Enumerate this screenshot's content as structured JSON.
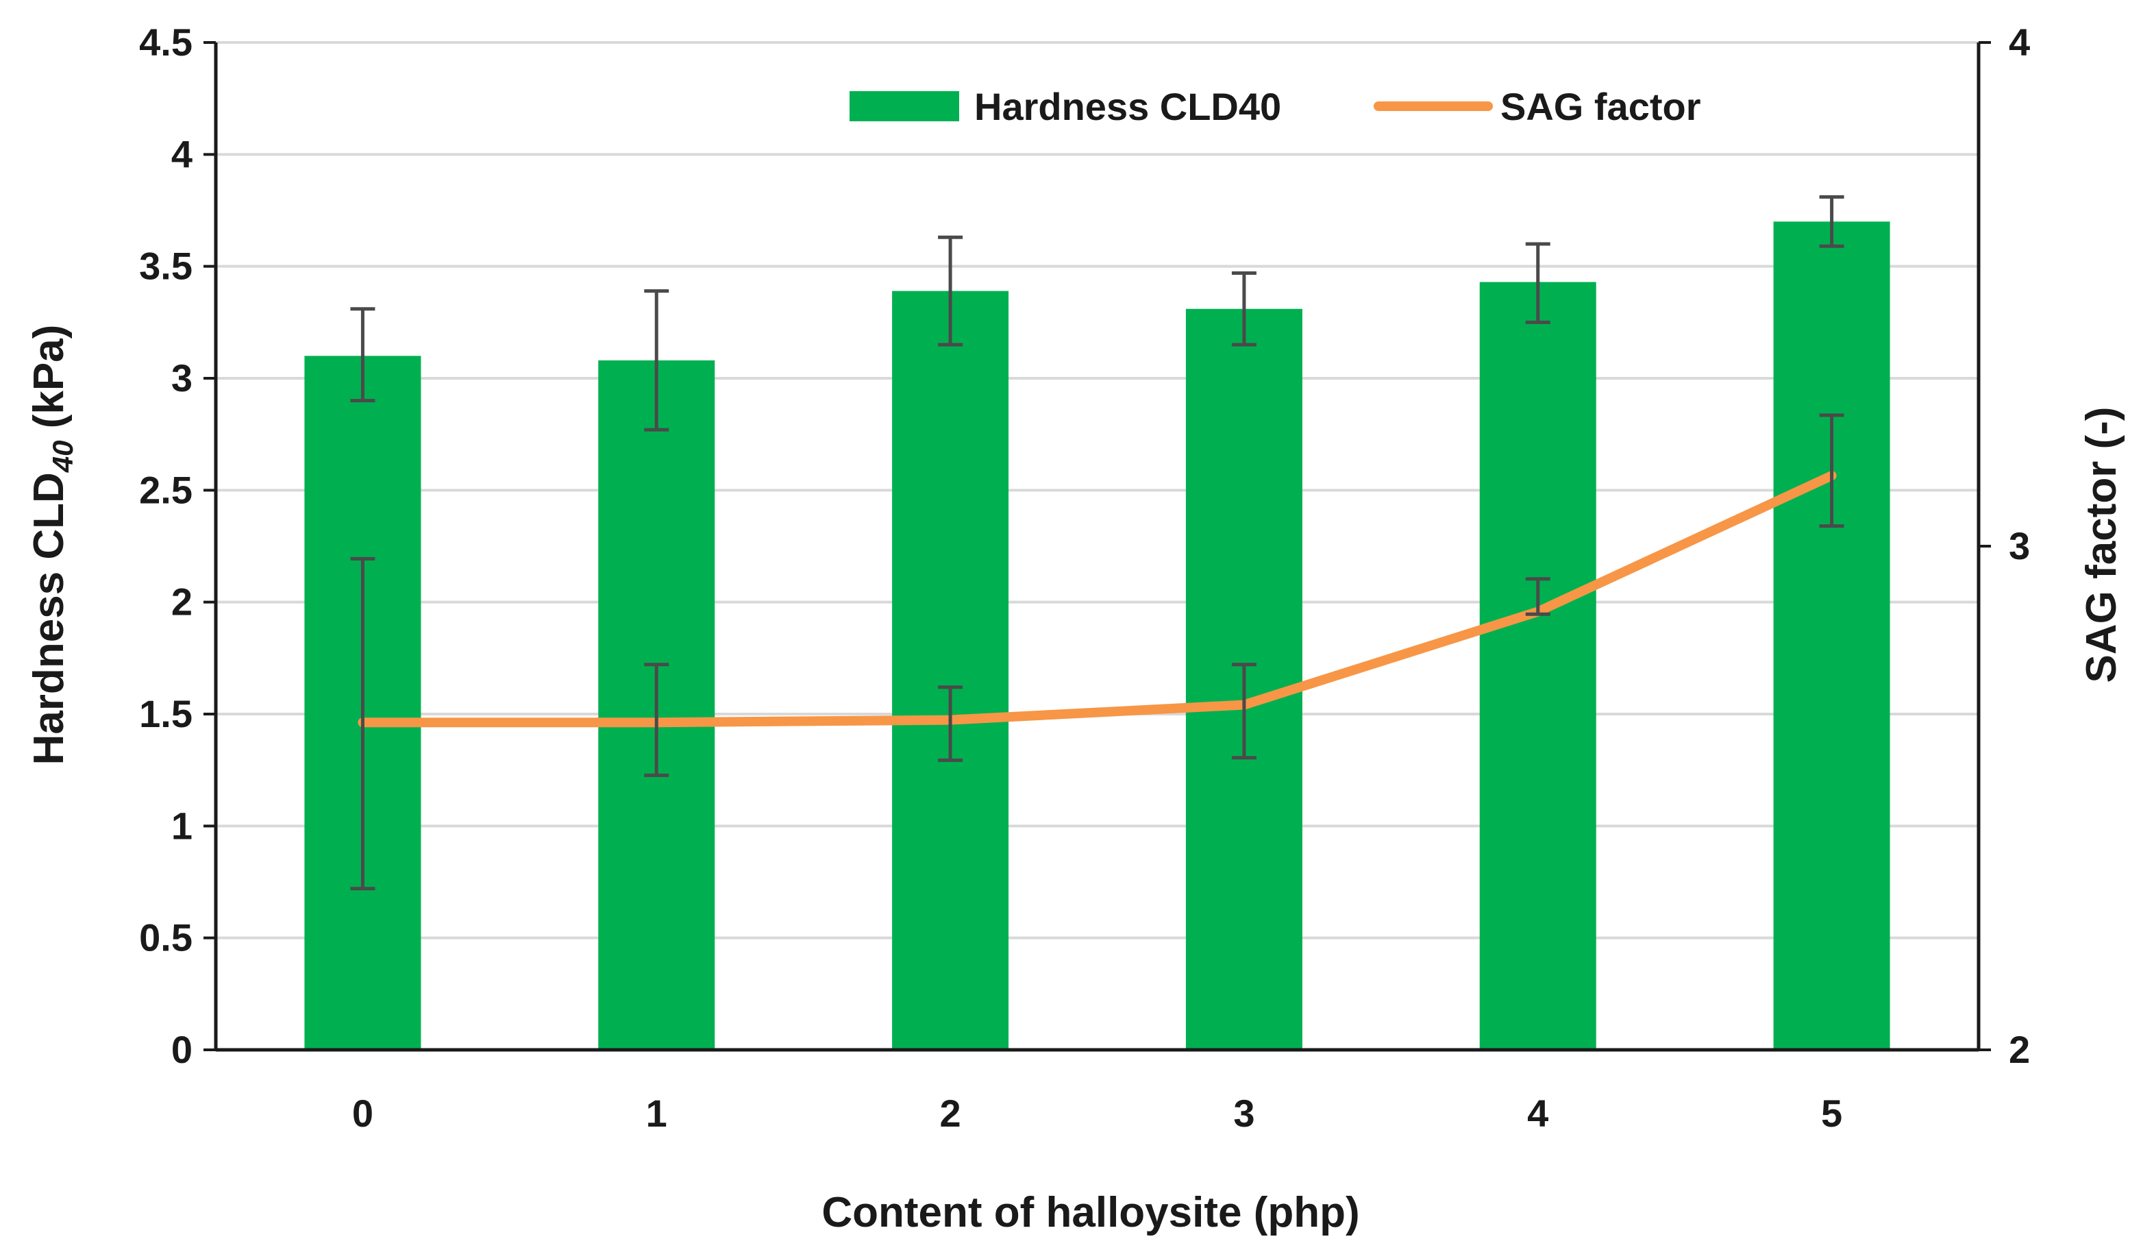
{
  "chart_data": {
    "type": "bar+line",
    "categories": [
      "0",
      "1",
      "2",
      "3",
      "4",
      "5"
    ],
    "series": [
      {
        "name": "Hardness CLD40",
        "type": "bar",
        "axis": "left",
        "color": "#00b050",
        "values": [
          3.1,
          3.08,
          3.39,
          3.31,
          3.43,
          3.7
        ],
        "error_low": [
          2.9,
          2.77,
          3.15,
          3.15,
          3.25,
          3.59
        ],
        "error_high": [
          3.31,
          3.39,
          3.63,
          3.47,
          3.6,
          3.81
        ]
      },
      {
        "name": "SAG factor",
        "type": "line",
        "axis": "right",
        "color": "#f79646",
        "values": [
          2.65,
          2.65,
          2.655,
          2.685,
          2.87,
          3.14
        ],
        "error_low": [
          2.32,
          2.545,
          2.575,
          2.58,
          2.865,
          3.04
        ],
        "error_high": [
          2.975,
          2.765,
          2.72,
          2.765,
          2.935,
          3.26
        ]
      }
    ],
    "xlabel": "Content of halloysite (php)",
    "ylabel_main": "Hardness CLD",
    "ylabel_sub": "40",
    "ylabel_unit": "(kPa)",
    "ylabel_right": "SAG factor (-)",
    "y_left": {
      "min": 0,
      "max": 4.5,
      "ticks": [
        "0",
        "0.5",
        "1",
        "1.5",
        "2",
        "2.5",
        "3",
        "3.5",
        "4",
        "4.5"
      ]
    },
    "y_right": {
      "min": 2,
      "max": 4,
      "ticks": [
        "2",
        "3",
        "4"
      ]
    },
    "grid": true,
    "legend_position": "top-right"
  }
}
